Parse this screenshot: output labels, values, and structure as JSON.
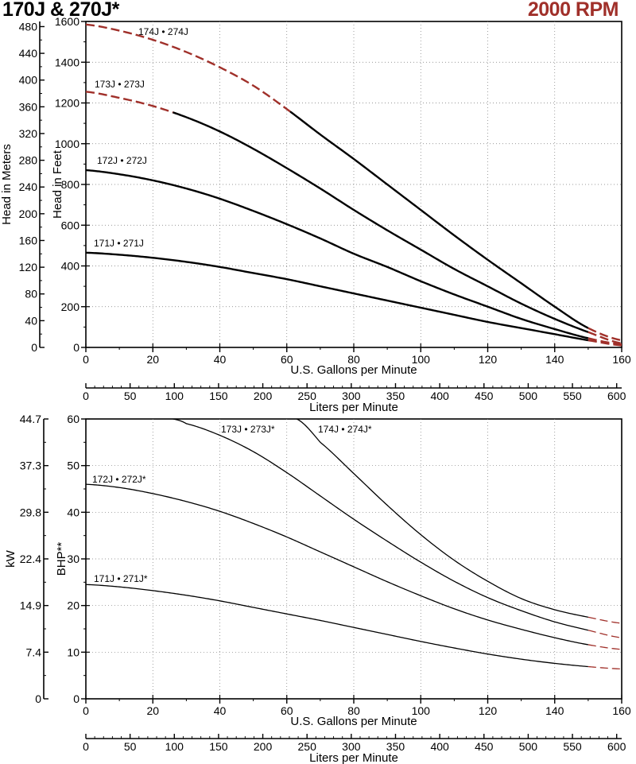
{
  "header": {
    "title": "170J & 270J*",
    "rpm": "2000 RPM"
  },
  "colors": {
    "curve": "#000000",
    "extrapolated": "#a0302a",
    "accent": "#a0302a"
  },
  "chart_data": [
    {
      "type": "line",
      "name": "head",
      "xlabel": "U.S. Gallons per Minute",
      "x2label": "Liters per Minute",
      "ylabel": "Head in Feet",
      "y2label": "Head in Meters",
      "xlim": [
        0,
        160
      ],
      "ylim": [
        0,
        1600
      ],
      "x_ticks": [
        0,
        20,
        40,
        60,
        80,
        100,
        120,
        140,
        160
      ],
      "y_ticks": [
        0,
        200,
        400,
        600,
        800,
        1000,
        1200,
        1400,
        1600
      ],
      "x2_ticks": [
        "0",
        "50",
        "100",
        "150",
        "200",
        "250",
        "300",
        "350",
        "400",
        "450",
        "500",
        "550",
        "600"
      ],
      "y2_ticks": [
        "0",
        "40",
        "80",
        "120",
        "160",
        "200",
        "240",
        "280",
        "320",
        "360",
        "400",
        "440",
        "480"
      ],
      "series": [
        {
          "name": "174J • 274J",
          "x": [
            0,
            10,
            20,
            30,
            40,
            50,
            60,
            70,
            80,
            90,
            100,
            110,
            120,
            130,
            140,
            150,
            160
          ],
          "y": [
            1585,
            1555,
            1510,
            1450,
            1375,
            1285,
            1170,
            1045,
            925,
            800,
            675,
            550,
            430,
            315,
            200,
            95,
            35
          ],
          "dashed_x": [
            [
              0,
              61
            ],
            [
              150,
              160
            ]
          ]
        },
        {
          "name": "173J • 273J",
          "x": [
            0,
            10,
            20,
            30,
            40,
            50,
            60,
            70,
            80,
            90,
            100,
            110,
            120,
            130,
            140,
            150,
            160
          ],
          "y": [
            1255,
            1225,
            1185,
            1130,
            1060,
            975,
            880,
            780,
            675,
            575,
            480,
            385,
            300,
            215,
            140,
            75,
            20
          ],
          "dashed_x": [
            [
              0,
              26
            ],
            [
              150,
              160
            ]
          ]
        },
        {
          "name": "172J • 272J",
          "x": [
            0,
            10,
            20,
            30,
            40,
            50,
            60,
            70,
            80,
            90,
            100,
            110,
            120,
            130,
            140,
            150,
            160
          ],
          "y": [
            870,
            850,
            820,
            780,
            730,
            670,
            605,
            535,
            460,
            395,
            325,
            260,
            200,
            140,
            90,
            45,
            15
          ],
          "dashed_x": [
            [
              150,
              160
            ]
          ]
        },
        {
          "name": "171J • 271J",
          "x": [
            0,
            10,
            20,
            30,
            40,
            50,
            60,
            70,
            80,
            90,
            100,
            110,
            120,
            130,
            140,
            150,
            160
          ],
          "y": [
            465,
            455,
            440,
            420,
            395,
            365,
            335,
            300,
            265,
            230,
            195,
            160,
            125,
            95,
            65,
            35,
            10
          ],
          "dashed_x": [
            [
              150,
              160
            ]
          ]
        }
      ]
    },
    {
      "type": "line",
      "name": "power",
      "xlabel": "U.S. Gallons per Minute",
      "x2label": "Liters per Minute",
      "ylabel": "BHP**",
      "y2label": "kW",
      "xlim": [
        0,
        160
      ],
      "ylim": [
        0,
        60
      ],
      "x_ticks": [
        0,
        20,
        40,
        60,
        80,
        100,
        120,
        140,
        160
      ],
      "y_ticks": [
        0,
        10,
        20,
        30,
        40,
        50,
        60
      ],
      "x2_ticks": [
        "0",
        "50",
        "100",
        "150",
        "200",
        "250",
        "300",
        "350",
        "400",
        "450",
        "500",
        "550",
        "600"
      ],
      "y2_ticks": [
        "0",
        "7.4",
        "14.9",
        "22.4",
        "29.8",
        "37.3",
        "44.7"
      ],
      "series": [
        {
          "name": "174J • 274J*",
          "x": [
            63,
            70,
            80,
            90,
            100,
            110,
            120,
            130,
            140,
            150,
            160
          ],
          "y": [
            60,
            55,
            48.3,
            41.5,
            35.2,
            29.7,
            25.2,
            21.5,
            19.1,
            17.5,
            16.2
          ],
          "dashed_x": [
            [
              150,
              160
            ]
          ]
        },
        {
          "name": "173J • 273J*",
          "x": [
            26,
            30,
            40,
            50,
            60,
            70,
            80,
            90,
            100,
            110,
            120,
            130,
            140,
            150,
            160
          ],
          "y": [
            60,
            59,
            56.5,
            53,
            48.5,
            43.5,
            38.5,
            33.8,
            29.3,
            25.2,
            21.7,
            18.9,
            16.5,
            14.7,
            13.1
          ],
          "dashed_x": [
            [
              150,
              160
            ]
          ]
        },
        {
          "name": "172J • 272J*",
          "x": [
            0,
            10,
            20,
            30,
            40,
            50,
            60,
            70,
            80,
            90,
            100,
            110,
            120,
            130,
            140,
            150,
            160
          ],
          "y": [
            46,
            45.3,
            44,
            42.3,
            40.2,
            37.6,
            34.7,
            31.5,
            28.3,
            25.1,
            22.1,
            19.3,
            16.9,
            14.9,
            13.1,
            11.6,
            10.6
          ],
          "dashed_x": [
            [
              150,
              160
            ]
          ]
        },
        {
          "name": "171J • 271J*",
          "x": [
            0,
            10,
            20,
            30,
            40,
            50,
            60,
            70,
            80,
            90,
            100,
            110,
            120,
            130,
            140,
            150,
            160
          ],
          "y": [
            24.5,
            24,
            23.2,
            22.2,
            21,
            19.6,
            18.2,
            16.8,
            15.3,
            13.8,
            12.3,
            10.9,
            9.6,
            8.5,
            7.6,
            6.9,
            6.4
          ],
          "dashed_x": [
            [
              150,
              160
            ]
          ]
        }
      ]
    }
  ]
}
